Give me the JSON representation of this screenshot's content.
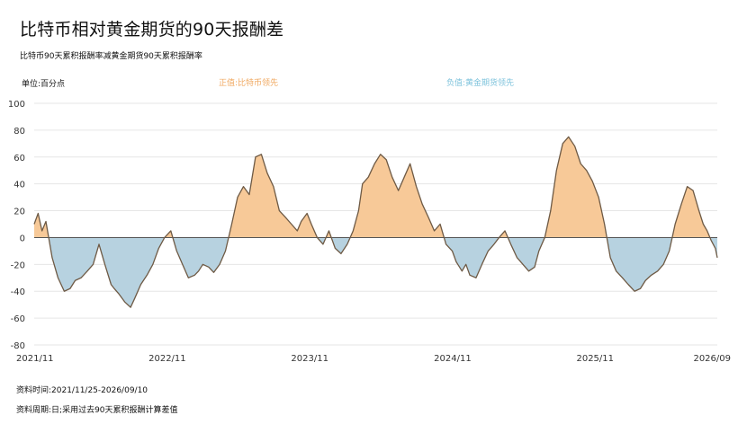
{
  "header": {
    "title": "比特币相对黄金期货的90天报酬差",
    "subtitle": "比特币90天累积报酬率减黄金期货90天累积报酬率",
    "unit": "单位:百分点"
  },
  "legend": {
    "positive": "正值:比特币领先",
    "negative": "负值:黄金期货领先"
  },
  "footer": {
    "period": "资料时间:2021/11/25-2026/09/10",
    "frequency": "资料周期:日;采用过去90天累积报酬计算差值"
  },
  "colors": {
    "positive_fill": "#f7c998",
    "negative_fill": "#b7d2e0",
    "line": "#6e5a45",
    "zero_line": "#555555",
    "grid": "#e6e6e6"
  },
  "chart_data": {
    "type": "area",
    "y_ticks": [
      100,
      80,
      60,
      40,
      20,
      0,
      -20,
      -40,
      -60,
      -80
    ],
    "ylim": [
      -80,
      100
    ],
    "x_ticks": [
      "2021/11",
      "2022/11",
      "2023/11",
      "2024/11",
      "2025/11",
      "2026/09"
    ],
    "xlim": [
      "2021/11/25",
      "2026/09/10"
    ],
    "grid": "horizontal",
    "series": [
      {
        "x": [
          "2021/11/25",
          "2021/12/05",
          "2021/12/15",
          "2021/12/25",
          "2022/01/10",
          "2022/01/25",
          "2022/02/10",
          "2022/02/25",
          "2022/03/10",
          "2022/03/25",
          "2022/04/10",
          "2022/04/25",
          "2022/05/10",
          "2022/05/25",
          "2022/06/10",
          "2022/06/18",
          "2022/06/30",
          "2022/07/15",
          "2022/07/30",
          "2022/08/10",
          "2022/08/25",
          "2022/09/10",
          "2022/09/25",
          "2022/10/10",
          "2022/10/25",
          "2022/11/10",
          "2022/11/25",
          "2022/12/10",
          "2022/12/25",
          "2023/01/10",
          "2023/01/20",
          "2023/01/31",
          "2023/02/15",
          "2023/02/28",
          "2023/03/15",
          "2023/03/30",
          "2023/04/15",
          "2023/04/30",
          "2023/05/15",
          "2023/05/30",
          "2023/06/15",
          "2023/06/30",
          "2023/07/15",
          "2023/07/31",
          "2023/08/15",
          "2023/08/31",
          "2023/09/15",
          "2023/09/30",
          "2023/10/10",
          "2023/10/25",
          "2023/11/05",
          "2023/11/20",
          "2023/12/05",
          "2023/12/20",
          "2024/01/05",
          "2024/01/20",
          "2024/02/05",
          "2024/02/20",
          "2024/03/05",
          "2024/03/15",
          "2024/03/30",
          "2024/04/15",
          "2024/04/30",
          "2024/05/15",
          "2024/05/30",
          "2024/06/15",
          "2024/06/30",
          "2024/07/15",
          "2024/07/31",
          "2024/08/15",
          "2024/08/31",
          "2024/09/15",
          "2024/09/30",
          "2024/10/15",
          "2024/10/31",
          "2024/11/10",
          "2024/11/25",
          "2024/12/05",
          "2024/12/15",
          "2024/12/31",
          "2025/01/15",
          "2025/01/31",
          "2025/02/15",
          "2025/02/28",
          "2025/03/15",
          "2025/03/30",
          "2025/04/15",
          "2025/04/30",
          "2025/05/15",
          "2025/05/30",
          "2025/06/10",
          "2025/06/25",
          "2025/07/10",
          "2025/07/25",
          "2025/08/10",
          "2025/08/25",
          "2025/09/10",
          "2025/09/25",
          "2025/10/10",
          "2025/10/25",
          "2025/11/10",
          "2025/11/25",
          "2025/12/10",
          "2025/12/25",
          "2026/01/10",
          "2026/01/25",
          "2026/02/10",
          "2026/02/25",
          "2026/03/10",
          "2026/03/25",
          "2026/04/10",
          "2026/04/25",
          "2026/05/10",
          "2026/05/25",
          "2026/06/10",
          "2026/06/25",
          "2026/07/10",
          "2026/07/25",
          "2026/08/05",
          "2026/08/15",
          "2026/08/25",
          "2026/09/05",
          "2026/09/10"
        ],
        "values": [
          10,
          18,
          5,
          12,
          -15,
          -30,
          -40,
          -38,
          -32,
          -30,
          -25,
          -20,
          -5,
          -20,
          -35,
          -38,
          -42,
          -48,
          -52,
          -45,
          -35,
          -28,
          -20,
          -8,
          0,
          5,
          -10,
          -20,
          -30,
          -28,
          -25,
          -20,
          -22,
          -26,
          -20,
          -10,
          10,
          30,
          38,
          32,
          60,
          62,
          48,
          38,
          20,
          15,
          10,
          5,
          12,
          18,
          10,
          0,
          -5,
          5,
          -8,
          -12,
          -5,
          5,
          20,
          40,
          45,
          55,
          62,
          58,
          45,
          35,
          45,
          55,
          38,
          25,
          15,
          5,
          10,
          -5,
          -10,
          -18,
          -25,
          -20,
          -28,
          -30,
          -20,
          -10,
          -5,
          0,
          5,
          -5,
          -15,
          -20,
          -25,
          -22,
          -10,
          0,
          20,
          50,
          70,
          75,
          68,
          55,
          50,
          42,
          30,
          10,
          -15,
          -25,
          -30,
          -35,
          -40,
          -38,
          -32,
          -28,
          -25,
          -20,
          -10,
          10,
          25,
          38,
          35,
          20,
          10,
          5,
          -2,
          -8,
          -15
        ]
      }
    ]
  }
}
